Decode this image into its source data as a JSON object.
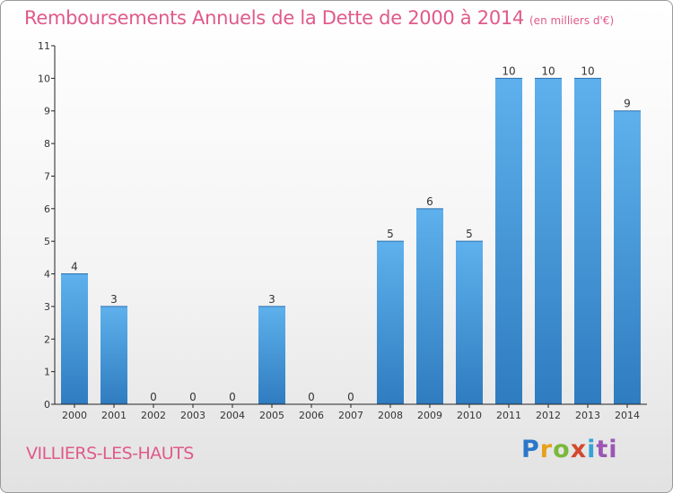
{
  "header": {
    "title": "Remboursements Annuels de la Dette de 2000 à 2014",
    "unit": "(en milliers d'€)"
  },
  "footer": {
    "place": "VILLIERS-LES-HAUTS",
    "brand_letters": [
      "P",
      "r",
      "o",
      "x",
      "i",
      "t",
      "i"
    ]
  },
  "colors": {
    "title": "#e05a8a",
    "bar_top": "#5eb1ec",
    "bar_bottom": "#2f7cc0",
    "axis": "#222222"
  },
  "chart_data": {
    "type": "bar",
    "title": "Remboursements Annuels de la Dette de 2000 à 2014",
    "xlabel": "",
    "ylabel": "",
    "categories": [
      "2000",
      "2001",
      "2002",
      "2003",
      "2004",
      "2005",
      "2006",
      "2007",
      "2008",
      "2009",
      "2010",
      "2011",
      "2012",
      "2013",
      "2014"
    ],
    "values": [
      4,
      3,
      0,
      0,
      0,
      3,
      0,
      0,
      5,
      6,
      5,
      10,
      10,
      10,
      9
    ],
    "value_labels": [
      "4",
      "3",
      "0",
      "0",
      "0",
      "3",
      "0",
      "0",
      "5",
      "6",
      "5",
      "10",
      "10",
      "10",
      "9"
    ],
    "ylim": [
      0,
      11
    ],
    "yticks": [
      "0",
      "1",
      "2",
      "3",
      "4",
      "5",
      "6",
      "7",
      "8",
      "9",
      "10",
      "11"
    ],
    "grid": false,
    "legend": "none"
  }
}
